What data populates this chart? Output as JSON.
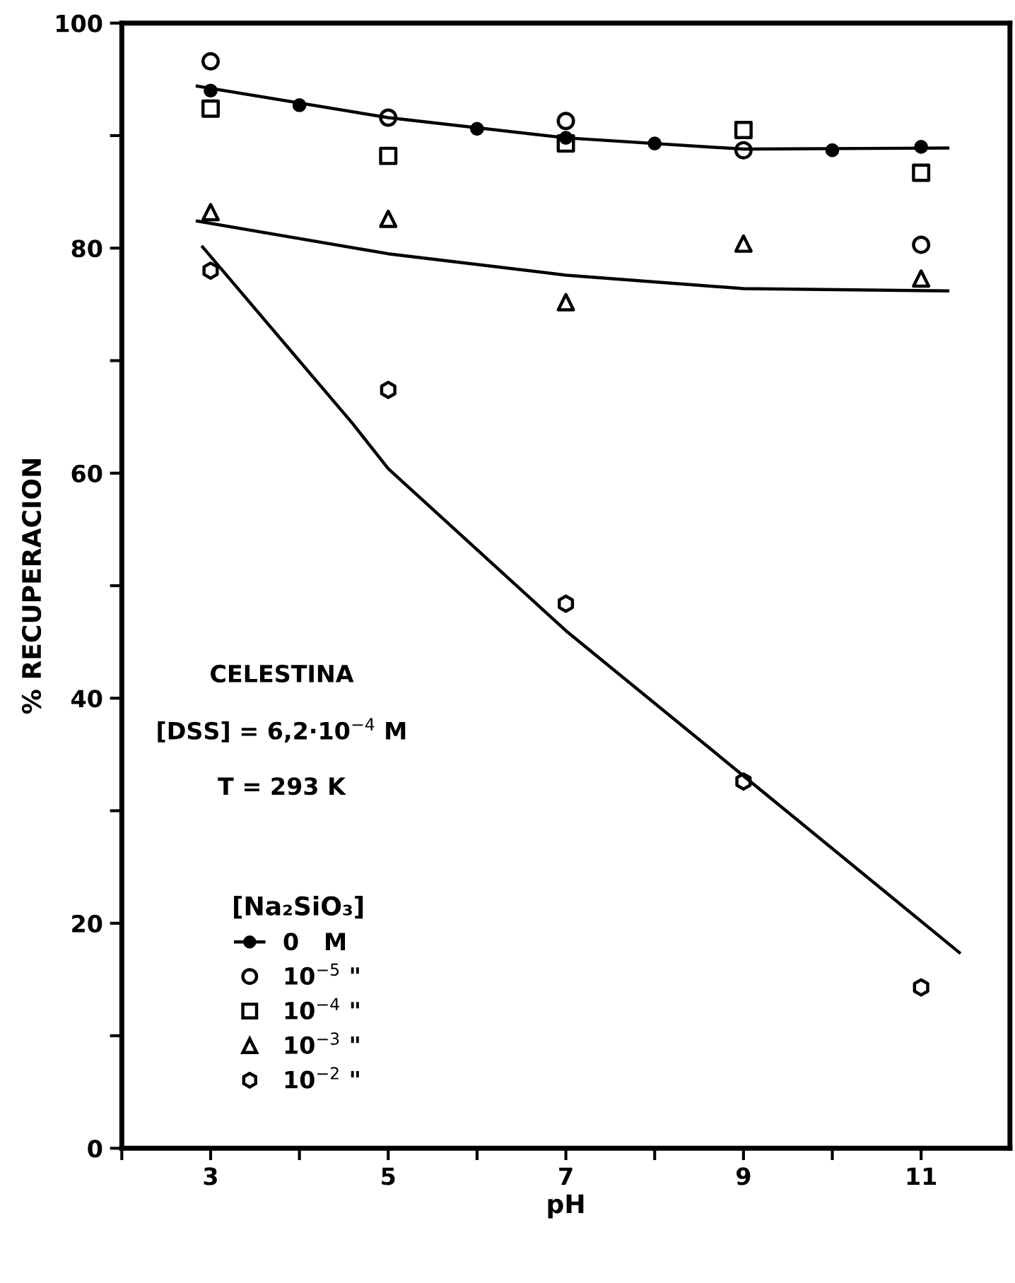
{
  "chart_data": {
    "type": "scatter",
    "xlabel": "pH",
    "ylabel": "% RECUPERACION",
    "xlim": [
      2,
      12
    ],
    "ylim": [
      0,
      100
    ],
    "xticks": [
      {
        "value": 2,
        "label": null
      },
      3,
      {
        "value": 4,
        "label": null
      },
      5,
      {
        "value": 6,
        "label": null
      },
      7,
      {
        "value": 8,
        "label": null
      },
      9,
      {
        "value": 10,
        "label": null
      },
      11
    ],
    "yticks": [
      0,
      {
        "value": 10,
        "label": null
      },
      20,
      {
        "value": 30,
        "label": null
      },
      40,
      {
        "value": 50,
        "label": null
      },
      60,
      {
        "value": 70,
        "label": null
      },
      80,
      {
        "value": 90,
        "label": null
      },
      100
    ],
    "grid": false,
    "legend": "bottom left",
    "legend_title": "[Na₂SiO₃]",
    "annotations": [
      "CELESTINA",
      "[DSS] = 6,2·10$^{−4}$ M",
      "T = 293 K"
    ],
    "series": [
      {
        "name": "0   M",
        "color": "#000000",
        "marker": "circle",
        "line_style": "solid",
        "x": [
          3,
          4,
          6,
          7,
          8,
          10,
          11
        ],
        "values": [
          94.0,
          92.7,
          90.6,
          89.8,
          89.3,
          88.7,
          89.0
        ]
      },
      {
        "name": "10$^{−5}$ \"",
        "color": "#000000",
        "marker": "circle",
        "x": [
          3,
          5,
          7,
          9,
          11
        ],
        "values": [
          96.6,
          91.6,
          91.3,
          88.7,
          80.3
        ]
      },
      {
        "name": "10$^{−4}$ \"",
        "color": "#000000",
        "marker": "square",
        "x": [
          3,
          5,
          7,
          9,
          11
        ],
        "values": [
          92.4,
          88.2,
          89.3,
          90.5,
          86.7
        ]
      },
      {
        "name": "10$^{−3}$ \"",
        "color": "#000000",
        "marker": "triangle",
        "x": [
          3,
          5,
          7,
          9,
          11
        ],
        "values": [
          83.2,
          82.6,
          75.2,
          80.4,
          77.3
        ]
      },
      {
        "name": "10$^{−2}$ \"",
        "color": "#000000",
        "x": [
          3,
          5,
          7,
          9,
          11
        ],
        "values": [
          78.0,
          67.4,
          48.4,
          32.6,
          14.3
        ]
      },
      {
        "type": "line",
        "color": "#000000",
        "x": [
          2.85,
          5,
          7,
          9,
          11.3
        ],
        "values": [
          94.4,
          91.6,
          89.8,
          88.8,
          88.9
        ]
      },
      {
        "type": "line",
        "color": "#000000",
        "x": [
          2.85,
          5,
          7,
          9,
          11.3
        ],
        "values": [
          82.4,
          79.5,
          77.6,
          76.4,
          76.2
        ]
      },
      {
        "type": "line",
        "color": "#000000",
        "x": [
          2.91,
          4.6,
          5,
          7,
          9,
          11.43
        ],
        "values": [
          80.1,
          64.4,
          60.4,
          46.0,
          33.1,
          17.4
        ]
      }
    ]
  }
}
